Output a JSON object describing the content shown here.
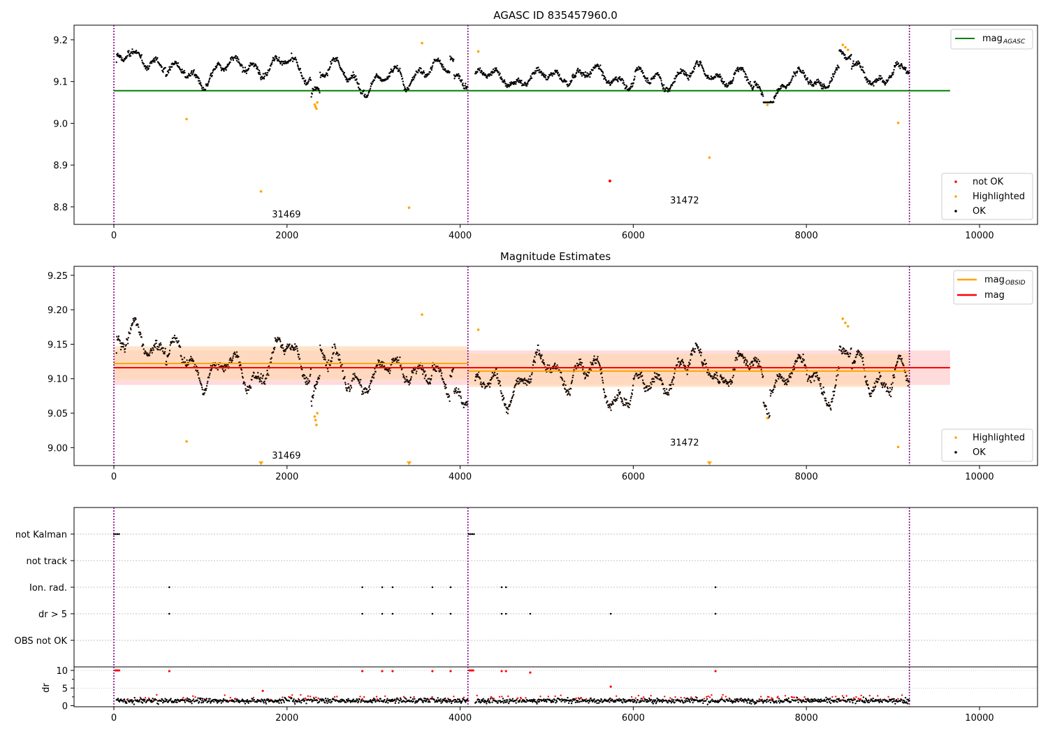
{
  "chart_data": [
    {
      "type": "scatter",
      "title": "AGASC ID 835457960.0",
      "xlabel": "",
      "ylabel": "",
      "xlim": [
        -460,
        10670
      ],
      "ylim": [
        8.758,
        9.235
      ],
      "x_ticks": [
        0,
        2000,
        4000,
        6000,
        8000,
        10000
      ],
      "x_tick_labels": [
        "0",
        "2000",
        "4000",
        "6000",
        "8000",
        "10000"
      ],
      "y_ticks": [
        8.8,
        8.9,
        9.0,
        9.1,
        9.2
      ],
      "y_tick_labels": [
        "8.8",
        "8.9",
        "9.0",
        "9.1",
        "9.2"
      ],
      "obsid_boundaries": [
        0,
        4090,
        9190
      ],
      "obsid_labels": [
        {
          "text": "31469",
          "x": 1850,
          "y": 8.775
        },
        {
          "text": "31472",
          "x": 6450,
          "y": 8.808
        }
      ],
      "lines": [
        {
          "name": "mag_AGASC",
          "color": "#008000",
          "x": [
            0,
            9660
          ],
          "y": [
            9.078,
            9.078
          ]
        }
      ],
      "legend_upper": {
        "main": "mag",
        "sub": "AGASC",
        "placement": "top-right"
      },
      "series": [
        {
          "name": "OK",
          "color": "#000000",
          "pattern": "star_lightcurve_ok",
          "x_range": [
            30,
            9190
          ],
          "approx_mean": 9.12,
          "approx_spread": [
            9.06,
            9.19
          ]
        },
        {
          "name": "Highlighted",
          "color": "#ffa500",
          "points": [
            [
              840,
              9.01
            ],
            [
              1700,
              8.837
            ],
            [
              2320,
              9.045
            ],
            [
              2330,
              9.04
            ],
            [
              2340,
              9.035
            ],
            [
              2350,
              9.05
            ],
            [
              3410,
              8.798
            ],
            [
              3560,
              9.192
            ],
            [
              4210,
              9.172
            ],
            [
              6880,
              8.918
            ],
            [
              7550,
              9.044
            ],
            [
              8420,
              9.188
            ],
            [
              8450,
              9.182
            ],
            [
              8480,
              9.176
            ],
            [
              9060,
              9.001
            ]
          ]
        },
        {
          "name": "not OK",
          "color": "#ff0000",
          "points": [
            [
              5730,
              8.862
            ]
          ]
        }
      ],
      "legend_lower": {
        "placement": "bottom-right",
        "entries": [
          {
            "label": "not OK",
            "color": "#ff0000"
          },
          {
            "label": "Highlighted",
            "color": "#ffa500"
          },
          {
            "label": "OK",
            "color": "#000000"
          }
        ]
      }
    },
    {
      "type": "scatter",
      "title": "Magnitude Estimates",
      "xlabel": "",
      "ylabel": "",
      "xlim": [
        -460,
        10670
      ],
      "ylim": [
        8.974,
        9.263
      ],
      "x_ticks": [
        0,
        2000,
        4000,
        6000,
        8000,
        10000
      ],
      "x_tick_labels": [
        "0",
        "2000",
        "4000",
        "6000",
        "8000",
        "10000"
      ],
      "y_ticks": [
        9.0,
        9.05,
        9.1,
        9.15,
        9.2,
        9.25
      ],
      "y_tick_labels": [
        "9.00",
        "9.05",
        "9.10",
        "9.15",
        "9.20",
        "9.25"
      ],
      "obsid_boundaries": [
        0,
        4090,
        9190
      ],
      "obsid_labels": [
        {
          "text": "31469",
          "x": 1850,
          "y": 8.984
        },
        {
          "text": "31472",
          "x": 6450,
          "y": 9.003
        }
      ],
      "bands": [
        {
          "name": "mag range",
          "color": "#ffcccc",
          "x": [
            0,
            9660
          ],
          "y": [
            9.091,
            9.141
          ]
        },
        {
          "name": "mag_OBSID range 31469",
          "color": "#ffd9b3",
          "x": [
            0,
            4090
          ],
          "y": [
            9.099,
            9.147
          ]
        },
        {
          "name": "mag_OBSID range 31472",
          "color": "#ffd9b3",
          "x": [
            4090,
            9190
          ],
          "y": [
            9.088,
            9.136
          ]
        }
      ],
      "lines": [
        {
          "name": "mag_OBSID 31469",
          "color": "#ffa500",
          "x": [
            0,
            4090
          ],
          "y": [
            9.122,
            9.122
          ]
        },
        {
          "name": "mag_OBSID 31472",
          "color": "#ffa500",
          "x": [
            4090,
            9190
          ],
          "y": [
            9.111,
            9.111
          ]
        },
        {
          "name": "mag",
          "color": "#ff0000",
          "x": [
            0,
            9660
          ],
          "y": [
            9.116,
            9.116
          ]
        }
      ],
      "out_of_range_markers": [
        {
          "x": 1700,
          "color": "#ffa500"
        },
        {
          "x": 3410,
          "color": "#ffa500"
        },
        {
          "x": 6880,
          "color": "#ffa500"
        }
      ],
      "legend_upper": {
        "placement": "top-right",
        "entries": [
          {
            "label": "mag",
            "sub": "OBSID",
            "color": "#ffa500"
          },
          {
            "label": "mag",
            "sub": "",
            "color": "#ff0000"
          }
        ]
      },
      "series": [
        {
          "name": "OK",
          "color": "#000000",
          "pattern": "star_lightcurve_ok",
          "x_range": [
            30,
            9190
          ],
          "approx_mean": 9.115,
          "approx_spread": [
            9.055,
            9.19
          ]
        },
        {
          "name": "Highlighted",
          "color": "#ffa500",
          "points": [
            [
              840,
              9.009
            ],
            [
              2320,
              9.045
            ],
            [
              2330,
              9.04
            ],
            [
              2340,
              9.033
            ],
            [
              2350,
              9.05
            ],
            [
              3560,
              9.193
            ],
            [
              4210,
              9.171
            ],
            [
              7550,
              9.043
            ],
            [
              8420,
              9.187
            ],
            [
              8450,
              9.181
            ],
            [
              8480,
              9.176
            ],
            [
              9060,
              9.001
            ]
          ]
        }
      ],
      "legend_lower": {
        "placement": "bottom-right",
        "entries": [
          {
            "label": "Highlighted",
            "color": "#ffa500"
          },
          {
            "label": "OK",
            "color": "#000000"
          }
        ]
      }
    },
    {
      "type": "scatter",
      "title": "",
      "xlim": [
        -460,
        10670
      ],
      "categories": [
        "not Kalman",
        "not track",
        "Ion. rad.",
        "dr > 5",
        "OBS not OK"
      ],
      "obsid_boundaries": [
        0,
        4090,
        9190
      ],
      "flag_points": {
        "not Kalman": [
          0,
          20,
          40,
          60,
          4100,
          4120,
          4140,
          4160
        ],
        "not track": [],
        "Ion. rad.": [
          640,
          2870,
          3100,
          3220,
          3680,
          3890,
          4480,
          4530,
          6950
        ],
        "dr > 5": [
          640,
          2870,
          3100,
          3220,
          3680,
          3890,
          4480,
          4530,
          4810,
          5740,
          6950
        ],
        "OBS not OK": []
      },
      "x_ticks": [
        0,
        2000,
        4000,
        6000,
        8000,
        10000
      ],
      "x_tick_labels": [
        "0",
        "2000",
        "4000",
        "6000",
        "8000",
        "10000"
      ]
    },
    {
      "type": "scatter",
      "title": "",
      "xlabel": "",
      "ylabel": "dr",
      "xlim": [
        -460,
        10670
      ],
      "ylim": [
        -0.3,
        11.0
      ],
      "y_ticks": [
        0,
        5,
        10
      ],
      "y_tick_labels": [
        "0",
        "5",
        "10"
      ],
      "obsid_boundaries": [
        0,
        4090,
        9190
      ],
      "x_ticks": [
        0,
        2000,
        4000,
        6000,
        8000,
        10000
      ],
      "x_tick_labels": [
        "0",
        "2000",
        "4000",
        "6000",
        "8000",
        "10000"
      ],
      "series": [
        {
          "name": "dr OK",
          "color": "#000000",
          "pattern": "noise",
          "x_range": [
            30,
            9190
          ],
          "approx_range": [
            0,
            3
          ]
        },
        {
          "name": "dr large",
          "color": "#ff0000",
          "points": [
            [
              20,
              10
            ],
            [
              40,
              10
            ],
            [
              60,
              10
            ],
            [
              640,
              9.8
            ],
            [
              2870,
              9.8
            ],
            [
              3100,
              9.8
            ],
            [
              3220,
              9.8
            ],
            [
              3680,
              9.8
            ],
            [
              3890,
              9.8
            ],
            [
              4110,
              10
            ],
            [
              4130,
              10
            ],
            [
              4150,
              10
            ],
            [
              4480,
              9.8
            ],
            [
              4530,
              9.8
            ],
            [
              4810,
              9.4
            ],
            [
              5740,
              5.4
            ],
            [
              6950,
              9.8
            ],
            [
              1720,
              4.2
            ]
          ]
        }
      ]
    }
  ]
}
